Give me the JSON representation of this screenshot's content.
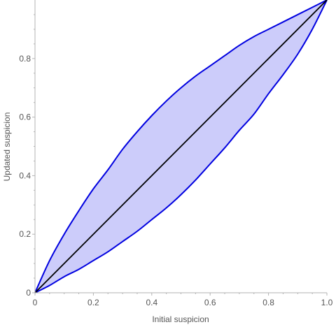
{
  "chart_data": {
    "type": "area",
    "title": "",
    "xlabel": "Initial suspicion",
    "ylabel": "Updated suspicion",
    "xlim": [
      0,
      1
    ],
    "ylim": [
      0,
      1
    ],
    "grid": false,
    "x_ticks": [
      {
        "value": 0,
        "label": "0"
      },
      {
        "value": 0.2,
        "label": "0.2"
      },
      {
        "value": 0.4,
        "label": "0.4"
      },
      {
        "value": 0.6,
        "label": "0.6"
      },
      {
        "value": 0.8,
        "label": "0.8"
      },
      {
        "value": 1.0,
        "label": "1.0"
      }
    ],
    "y_ticks": [
      {
        "value": 0,
        "label": "0"
      },
      {
        "value": 0.2,
        "label": "0.2"
      },
      {
        "value": 0.4,
        "label": "0.4"
      },
      {
        "value": 0.6,
        "label": "0.6"
      },
      {
        "value": 0.8,
        "label": "0.8"
      }
    ],
    "x": [
      0,
      0.05,
      0.1,
      0.15,
      0.2,
      0.25,
      0.3,
      0.35,
      0.4,
      0.45,
      0.5,
      0.55,
      0.6,
      0.65,
      0.7,
      0.75,
      0.8,
      0.85,
      0.9,
      0.95,
      1.0
    ],
    "upper_values": [
      0,
      0.11,
      0.2,
      0.28,
      0.355,
      0.42,
      0.49,
      0.55,
      0.605,
      0.655,
      0.7,
      0.74,
      0.775,
      0.81,
      0.845,
      0.875,
      0.9,
      0.925,
      0.95,
      0.975,
      1.0
    ],
    "lower_values": [
      0,
      0.025,
      0.055,
      0.08,
      0.11,
      0.14,
      0.175,
      0.21,
      0.25,
      0.29,
      0.335,
      0.385,
      0.44,
      0.495,
      0.555,
      0.61,
      0.68,
      0.745,
      0.815,
      0.9,
      1.0
    ],
    "diagonal": {
      "x": [
        0,
        1
      ],
      "y": [
        0,
        1
      ]
    },
    "colors": {
      "band_fill": "#ccccfa",
      "band_edge": "#0000e0",
      "diagonal": "#000000",
      "axis": "#b3b3b3",
      "text": "#555555"
    }
  }
}
